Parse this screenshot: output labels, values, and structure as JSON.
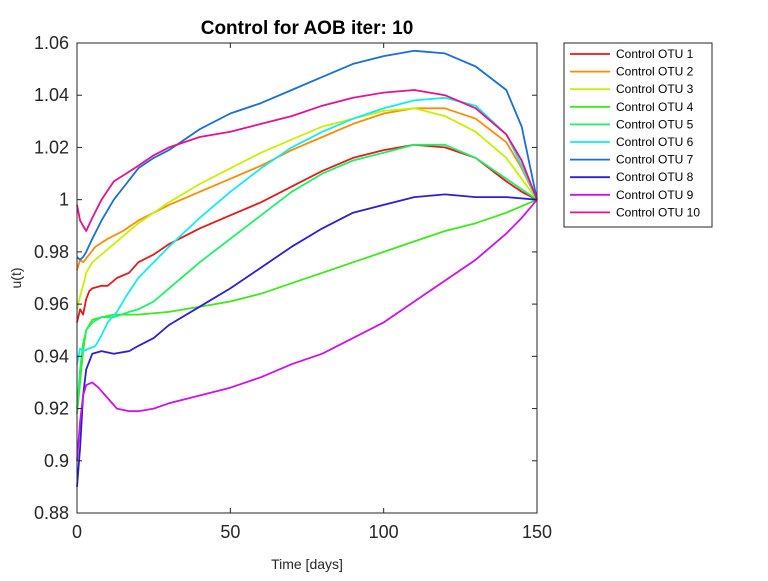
{
  "chart_data": {
    "type": "line",
    "title": "Control for AOB iter: 10",
    "xlabel": "Time [days]",
    "ylabel": "u(t)",
    "xlim": [
      0,
      150
    ],
    "ylim": [
      0.88,
      1.06
    ],
    "xticks": [
      0,
      50,
      100,
      150
    ],
    "xtick_labels": [
      "0",
      "50",
      "100",
      "150"
    ],
    "yticks": [
      0.88,
      0.9,
      0.92,
      0.94,
      0.96,
      0.98,
      1.0,
      1.02,
      1.04,
      1.06
    ],
    "ytick_labels": [
      "0.88",
      "0.9",
      "0.92",
      "0.94",
      "0.96",
      "0.98",
      "1",
      "1.02",
      "1.04",
      "1.06"
    ],
    "grid": false,
    "legend_position": "outside-top-right",
    "series": [
      {
        "name": "Control OTU 1",
        "color": "#e41a1c",
        "points": [
          [
            0,
            0.953
          ],
          [
            1,
            0.958
          ],
          [
            2,
            0.956
          ],
          [
            3,
            0.962
          ],
          [
            4,
            0.965
          ],
          [
            5,
            0.966
          ],
          [
            8,
            0.967
          ],
          [
            10,
            0.967
          ],
          [
            13,
            0.97
          ],
          [
            17,
            0.972
          ],
          [
            20,
            0.976
          ],
          [
            25,
            0.979
          ],
          [
            30,
            0.983
          ],
          [
            40,
            0.989
          ],
          [
            50,
            0.994
          ],
          [
            60,
            0.999
          ],
          [
            70,
            1.005
          ],
          [
            80,
            1.011
          ],
          [
            90,
            1.016
          ],
          [
            100,
            1.019
          ],
          [
            110,
            1.021
          ],
          [
            120,
            1.02
          ],
          [
            130,
            1.016
          ],
          [
            140,
            1.007
          ],
          [
            145,
            1.003
          ],
          [
            150,
            1.0
          ]
        ]
      },
      {
        "name": "Control OTU 2",
        "color": "#ff8c00",
        "points": [
          [
            0,
            0.973
          ],
          [
            1,
            0.977
          ],
          [
            2,
            0.976
          ],
          [
            4,
            0.979
          ],
          [
            6,
            0.982
          ],
          [
            10,
            0.985
          ],
          [
            15,
            0.988
          ],
          [
            20,
            0.992
          ],
          [
            25,
            0.995
          ],
          [
            30,
            0.998
          ],
          [
            40,
            1.003
          ],
          [
            50,
            1.008
          ],
          [
            60,
            1.013
          ],
          [
            70,
            1.019
          ],
          [
            80,
            1.024
          ],
          [
            90,
            1.029
          ],
          [
            100,
            1.033
          ],
          [
            110,
            1.035
          ],
          [
            120,
            1.035
          ],
          [
            130,
            1.031
          ],
          [
            140,
            1.022
          ],
          [
            145,
            1.012
          ],
          [
            150,
            1.0
          ]
        ]
      },
      {
        "name": "Control OTU 3",
        "color": "#c8f000",
        "points": [
          [
            0,
            0.958
          ],
          [
            1,
            0.963
          ],
          [
            2,
            0.967
          ],
          [
            3,
            0.972
          ],
          [
            5,
            0.976
          ],
          [
            8,
            0.979
          ],
          [
            12,
            0.983
          ],
          [
            16,
            0.987
          ],
          [
            20,
            0.991
          ],
          [
            25,
            0.995
          ],
          [
            30,
            0.999
          ],
          [
            40,
            1.006
          ],
          [
            50,
            1.012
          ],
          [
            60,
            1.018
          ],
          [
            70,
            1.023
          ],
          [
            80,
            1.028
          ],
          [
            90,
            1.031
          ],
          [
            100,
            1.034
          ],
          [
            110,
            1.035
          ],
          [
            120,
            1.032
          ],
          [
            130,
            1.026
          ],
          [
            140,
            1.016
          ],
          [
            145,
            1.008
          ],
          [
            150,
            1.0
          ]
        ]
      },
      {
        "name": "Control OTU 4",
        "color": "#3ee81a",
        "points": [
          [
            0,
            0.918
          ],
          [
            1,
            0.93
          ],
          [
            2,
            0.942
          ],
          [
            3,
            0.95
          ],
          [
            5,
            0.954
          ],
          [
            8,
            0.955
          ],
          [
            12,
            0.956
          ],
          [
            20,
            0.956
          ],
          [
            30,
            0.957
          ],
          [
            40,
            0.959
          ],
          [
            50,
            0.961
          ],
          [
            60,
            0.964
          ],
          [
            70,
            0.968
          ],
          [
            80,
            0.972
          ],
          [
            90,
            0.976
          ],
          [
            100,
            0.98
          ],
          [
            110,
            0.984
          ],
          [
            120,
            0.988
          ],
          [
            130,
            0.991
          ],
          [
            140,
            0.995
          ],
          [
            150,
            1.0
          ]
        ]
      },
      {
        "name": "Control OTU 5",
        "color": "#1ef06a",
        "points": [
          [
            0,
            0.92
          ],
          [
            1,
            0.935
          ],
          [
            2,
            0.945
          ],
          [
            3,
            0.95
          ],
          [
            5,
            0.953
          ],
          [
            8,
            0.955
          ],
          [
            12,
            0.955
          ],
          [
            17,
            0.957
          ],
          [
            20,
            0.958
          ],
          [
            25,
            0.961
          ],
          [
            30,
            0.966
          ],
          [
            40,
            0.976
          ],
          [
            50,
            0.985
          ],
          [
            60,
            0.994
          ],
          [
            70,
            1.003
          ],
          [
            80,
            1.01
          ],
          [
            90,
            1.015
          ],
          [
            100,
            1.018
          ],
          [
            110,
            1.021
          ],
          [
            120,
            1.021
          ],
          [
            130,
            1.016
          ],
          [
            140,
            1.008
          ],
          [
            145,
            1.004
          ],
          [
            150,
            1.0
          ]
        ]
      },
      {
        "name": "Control OTU 6",
        "color": "#12ecec",
        "points": [
          [
            0,
            0.937
          ],
          [
            1,
            0.943
          ],
          [
            2,
            0.942
          ],
          [
            4,
            0.943
          ],
          [
            6,
            0.944
          ],
          [
            8,
            0.948
          ],
          [
            10,
            0.953
          ],
          [
            13,
            0.957
          ],
          [
            16,
            0.963
          ],
          [
            20,
            0.97
          ],
          [
            25,
            0.976
          ],
          [
            30,
            0.982
          ],
          [
            40,
            0.993
          ],
          [
            50,
            1.003
          ],
          [
            60,
            1.012
          ],
          [
            70,
            1.02
          ],
          [
            80,
            1.026
          ],
          [
            90,
            1.031
          ],
          [
            100,
            1.035
          ],
          [
            110,
            1.038
          ],
          [
            120,
            1.039
          ],
          [
            130,
            1.036
          ],
          [
            140,
            1.025
          ],
          [
            145,
            1.013
          ],
          [
            150,
            1.0
          ]
        ]
      },
      {
        "name": "Control OTU 7",
        "color": "#1a6ed8",
        "points": [
          [
            0,
            0.978
          ],
          [
            1,
            0.977
          ],
          [
            2,
            0.978
          ],
          [
            3,
            0.98
          ],
          [
            5,
            0.985
          ],
          [
            8,
            0.992
          ],
          [
            12,
            1.0
          ],
          [
            16,
            1.006
          ],
          [
            20,
            1.012
          ],
          [
            25,
            1.016
          ],
          [
            30,
            1.019
          ],
          [
            40,
            1.027
          ],
          [
            50,
            1.033
          ],
          [
            60,
            1.037
          ],
          [
            70,
            1.042
          ],
          [
            80,
            1.047
          ],
          [
            90,
            1.052
          ],
          [
            100,
            1.055
          ],
          [
            110,
            1.057
          ],
          [
            120,
            1.056
          ],
          [
            130,
            1.051
          ],
          [
            140,
            1.042
          ],
          [
            145,
            1.028
          ],
          [
            150,
            1.0
          ]
        ]
      },
      {
        "name": "Control OTU 8",
        "color": "#2b1ed8",
        "points": [
          [
            0,
            0.89
          ],
          [
            1,
            0.905
          ],
          [
            2,
            0.925
          ],
          [
            3,
            0.935
          ],
          [
            5,
            0.941
          ],
          [
            8,
            0.942
          ],
          [
            12,
            0.941
          ],
          [
            17,
            0.942
          ],
          [
            20,
            0.944
          ],
          [
            25,
            0.947
          ],
          [
            30,
            0.952
          ],
          [
            40,
            0.959
          ],
          [
            50,
            0.966
          ],
          [
            60,
            0.974
          ],
          [
            70,
            0.982
          ],
          [
            80,
            0.989
          ],
          [
            90,
            0.995
          ],
          [
            100,
            0.998
          ],
          [
            110,
            1.001
          ],
          [
            120,
            1.002
          ],
          [
            130,
            1.001
          ],
          [
            140,
            1.001
          ],
          [
            150,
            1.0
          ]
        ]
      },
      {
        "name": "Control OTU 9",
        "color": "#cc11ee",
        "points": [
          [
            0,
            0.9
          ],
          [
            1,
            0.915
          ],
          [
            2,
            0.925
          ],
          [
            3,
            0.929
          ],
          [
            5,
            0.93
          ],
          [
            7,
            0.928
          ],
          [
            10,
            0.924
          ],
          [
            13,
            0.92
          ],
          [
            17,
            0.919
          ],
          [
            20,
            0.919
          ],
          [
            25,
            0.92
          ],
          [
            30,
            0.922
          ],
          [
            40,
            0.925
          ],
          [
            50,
            0.928
          ],
          [
            60,
            0.932
          ],
          [
            70,
            0.937
          ],
          [
            80,
            0.941
          ],
          [
            90,
            0.947
          ],
          [
            100,
            0.953
          ],
          [
            110,
            0.961
          ],
          [
            120,
            0.969
          ],
          [
            130,
            0.977
          ],
          [
            140,
            0.987
          ],
          [
            145,
            0.993
          ],
          [
            150,
            1.0
          ]
        ]
      },
      {
        "name": "Control OTU 10",
        "color": "#e8118c",
        "points": [
          [
            0,
            0.998
          ],
          [
            1,
            0.992
          ],
          [
            2,
            0.99
          ],
          [
            3,
            0.988
          ],
          [
            5,
            0.993
          ],
          [
            8,
            1.0
          ],
          [
            12,
            1.007
          ],
          [
            16,
            1.01
          ],
          [
            20,
            1.013
          ],
          [
            25,
            1.017
          ],
          [
            30,
            1.02
          ],
          [
            40,
            1.024
          ],
          [
            50,
            1.026
          ],
          [
            60,
            1.029
          ],
          [
            70,
            1.032
          ],
          [
            80,
            1.036
          ],
          [
            90,
            1.039
          ],
          [
            100,
            1.041
          ],
          [
            110,
            1.042
          ],
          [
            120,
            1.04
          ],
          [
            130,
            1.035
          ],
          [
            140,
            1.025
          ],
          [
            145,
            1.015
          ],
          [
            150,
            1.0
          ]
        ]
      }
    ]
  }
}
